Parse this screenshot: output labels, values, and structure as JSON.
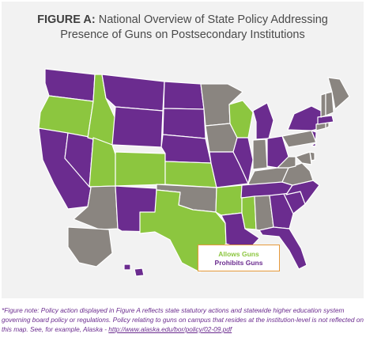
{
  "figure": {
    "title_label": "FIGURE A:",
    "title_line1": "National Overview of State Policy Addressing",
    "title_line2": "Presence of Guns on Postsecondary Institutions"
  },
  "legend": {
    "allows": "Allows Guns",
    "prohibits": "Prohibits Guns"
  },
  "colors": {
    "allows": "#8cc63f",
    "prohibits": "#6b2c8f",
    "no_policy": "#8a8580",
    "legend_border": "#e69a3b"
  },
  "state_policies": {
    "allows": [
      "OR",
      "ID",
      "UT",
      "CO",
      "KS",
      "TX",
      "WI",
      "AR",
      "MS"
    ],
    "prohibits": [
      "WA",
      "CA",
      "NV",
      "MT",
      "WY",
      "NM",
      "ND",
      "SD",
      "NE",
      "LA",
      "MO",
      "IL",
      "MI",
      "OH",
      "TN",
      "NC",
      "SC",
      "GA",
      "FL",
      "NY",
      "NJ",
      "MA",
      "HI"
    ]
  },
  "footnote": {
    "text": "*Figure note: Policy action displayed in Figure A reflects state statutory actions and statewide higher education system governing board policy or regulations. Policy relating to guns on campus that resides at the institution-level is not reflected on this map. See, for example, Alaska - ",
    "link": "http://www.alaska.edu/bor/policy/02-09.pdf"
  }
}
